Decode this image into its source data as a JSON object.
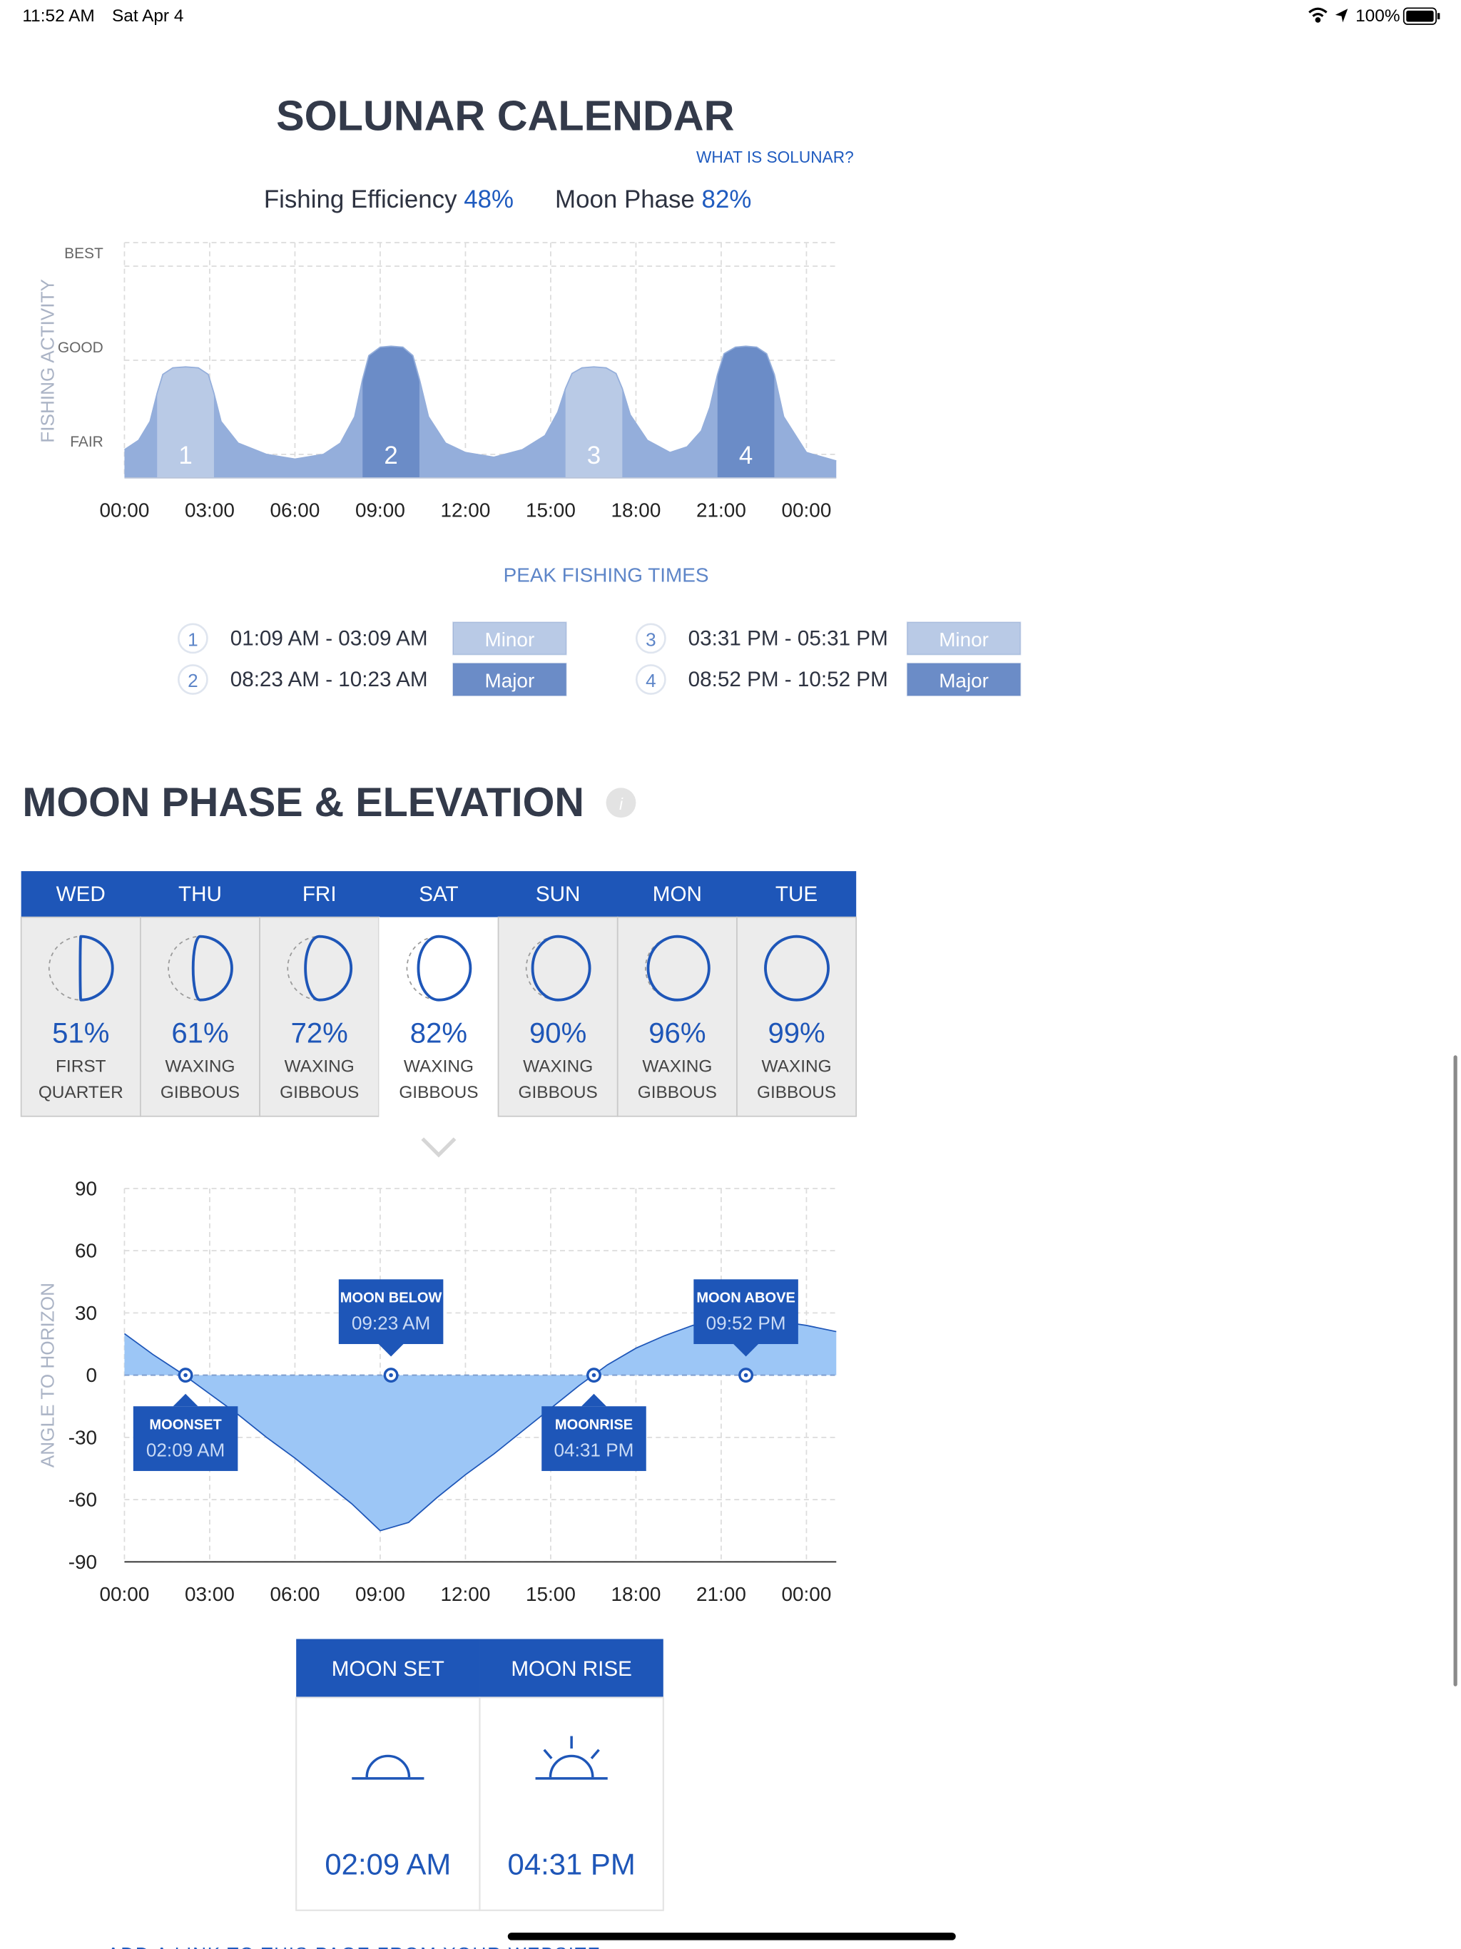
{
  "status_bar": {
    "time": "11:52 AM",
    "date": "Sat Apr 4",
    "battery": "100%"
  },
  "solunar": {
    "title": "SOLUNAR CALENDAR",
    "link": "WHAT IS SOLUNAR?",
    "efficiency_label": "Fishing Efficiency",
    "efficiency": "48%",
    "moon_phase_label": "Moon Phase",
    "moon_phase": "82%",
    "chart": {
      "type": "area",
      "y_label": "FISHING ACTIVITY",
      "color": "#94aedb",
      "grid": true,
      "xlim": [
        0,
        25.05
      ],
      "ylim": [
        0.75,
        3.25
      ],
      "xticks": [
        {
          "value": 0,
          "label": "00:00"
        },
        {
          "value": 3,
          "label": "03:00"
        },
        {
          "value": 6,
          "label": "06:00"
        },
        {
          "value": 9,
          "label": "09:00"
        },
        {
          "value": 12,
          "label": "12:00"
        },
        {
          "value": 15,
          "label": "15:00"
        },
        {
          "value": 18,
          "label": "18:00"
        },
        {
          "value": 21,
          "label": "21:00"
        },
        {
          "value": 24,
          "label": "00:00"
        }
      ],
      "yticks": [
        {
          "value": 1,
          "label": "FAIR"
        },
        {
          "value": 2,
          "label": "GOOD"
        },
        {
          "value": 3,
          "label": "BEST"
        }
      ],
      "x": [
        0,
        0.5,
        0.9,
        1.15,
        1.35,
        1.7,
        2.15,
        2.6,
        2.95,
        3.15,
        3.4,
        4,
        5,
        6,
        7,
        7.6,
        8.1,
        8.38,
        8.6,
        9,
        9.38,
        9.8,
        10.15,
        10.38,
        10.7,
        11.3,
        12,
        13,
        14,
        14.8,
        15.25,
        15.52,
        15.75,
        16.1,
        16.52,
        16.95,
        17.3,
        17.52,
        17.8,
        18.4,
        19.2,
        19.8,
        20.3,
        20.6,
        20.87,
        21.1,
        21.5,
        21.87,
        22.25,
        22.6,
        22.87,
        23.2,
        24,
        25.05
      ],
      "values": [
        1.05,
        1.15,
        1.35,
        1.65,
        1.85,
        1.92,
        1.93,
        1.92,
        1.85,
        1.65,
        1.35,
        1.12,
        1.0,
        0.95,
        1.0,
        1.12,
        1.4,
        1.8,
        2.05,
        2.14,
        2.15,
        2.14,
        2.05,
        1.8,
        1.4,
        1.12,
        1.02,
        0.97,
        1.05,
        1.2,
        1.45,
        1.7,
        1.86,
        1.92,
        1.93,
        1.92,
        1.86,
        1.7,
        1.42,
        1.15,
        1.02,
        1.08,
        1.25,
        1.5,
        1.85,
        2.07,
        2.14,
        2.15,
        2.14,
        2.07,
        1.85,
        1.4,
        1.02,
        0.93
      ]
    },
    "peak_title": "PEAK FISHING TIMES",
    "peaks": [
      {
        "number": "1",
        "time": "01:09 AM - 03:09 AM",
        "type": "Minor",
        "start": 1.15,
        "end": 3.15,
        "color": "#b9cae6"
      },
      {
        "number": "2",
        "time": "08:23 AM - 10:23 AM",
        "type": "Major",
        "start": 8.38,
        "end": 10.38,
        "color": "#6b8cc7"
      },
      {
        "number": "3",
        "time": "03:31 PM - 05:31 PM",
        "type": "Minor",
        "start": 15.52,
        "end": 17.52,
        "color": "#b9cae6"
      },
      {
        "number": "4",
        "time": "08:52 PM - 10:52 PM",
        "type": "Major",
        "start": 20.87,
        "end": 22.87,
        "color": "#6b8cc7"
      }
    ]
  },
  "moon": {
    "title": "MOON PHASE & ELEVATION",
    "days": [
      {
        "day": "WED",
        "illumination": 51,
        "illumination_label": "51%",
        "phase": [
          "FIRST",
          "QUARTER"
        ]
      },
      {
        "day": "THU",
        "illumination": 61,
        "illumination_label": "61%",
        "phase": [
          "WAXING",
          "GIBBOUS"
        ]
      },
      {
        "day": "FRI",
        "illumination": 72,
        "illumination_label": "72%",
        "phase": [
          "WAXING",
          "GIBBOUS"
        ]
      },
      {
        "day": "SAT",
        "illumination": 82,
        "illumination_label": "82%",
        "phase": [
          "WAXING",
          "GIBBOUS"
        ],
        "selected": true
      },
      {
        "day": "SUN",
        "illumination": 90,
        "illumination_label": "90%",
        "phase": [
          "WAXING",
          "GIBBOUS"
        ]
      },
      {
        "day": "MON",
        "illumination": 96,
        "illumination_label": "96%",
        "phase": [
          "WAXING",
          "GIBBOUS"
        ]
      },
      {
        "day": "TUE",
        "illumination": 99,
        "illumination_label": "99%",
        "phase": [
          "WAXING",
          "GIBBOUS"
        ]
      }
    ],
    "elevation": {
      "type": "area",
      "y_label": "ANGLE TO HORIZON",
      "color": "#9cc6f6",
      "line_color": "#1e56b8",
      "grid": true,
      "xlim": [
        0,
        25.05
      ],
      "ylim": [
        -90,
        90
      ],
      "xticks": [
        {
          "value": 0,
          "label": "00:00"
        },
        {
          "value": 3,
          "label": "03:00"
        },
        {
          "value": 6,
          "label": "06:00"
        },
        {
          "value": 9,
          "label": "09:00"
        },
        {
          "value": 12,
          "label": "12:00"
        },
        {
          "value": 15,
          "label": "15:00"
        },
        {
          "value": 18,
          "label": "18:00"
        },
        {
          "value": 21,
          "label": "21:00"
        },
        {
          "value": 24,
          "label": "00:00"
        }
      ],
      "yticks": [
        90,
        60,
        30,
        0,
        -30,
        -60,
        -90
      ],
      "x": [
        0,
        1,
        2,
        3,
        4,
        5,
        6,
        7,
        8,
        9,
        10,
        11,
        12,
        13,
        14,
        15,
        16,
        17,
        18,
        19,
        20,
        21,
        22,
        23,
        24,
        25.05
      ],
      "values": [
        20,
        10,
        1,
        -9,
        -19,
        -30,
        -40,
        -51,
        -62,
        -75,
        -71,
        -59,
        -48,
        -38,
        -27,
        -16,
        -5,
        5,
        13,
        19,
        24,
        27,
        27,
        26,
        24,
        21
      ],
      "events": [
        {
          "label": "MOONSET",
          "time": "02:09 AM",
          "x": 2.15,
          "position": "below"
        },
        {
          "label": "MOON BELOW",
          "time": "09:23 AM",
          "x": 9.38,
          "position": "above"
        },
        {
          "label": "MOONRISE",
          "time": "04:31 PM",
          "x": 16.52,
          "position": "below"
        },
        {
          "label": "MOON ABOVE",
          "time": "09:52 PM",
          "x": 21.87,
          "position": "above"
        }
      ]
    },
    "rise_set": [
      {
        "title": "MOON SET",
        "time": "02:09 AM"
      },
      {
        "title": "MOON RISE",
        "time": "04:31 PM"
      }
    ]
  },
  "footer_link": "ADD A LINK TO THIS PAGE FROM YOUR WEBSITE"
}
